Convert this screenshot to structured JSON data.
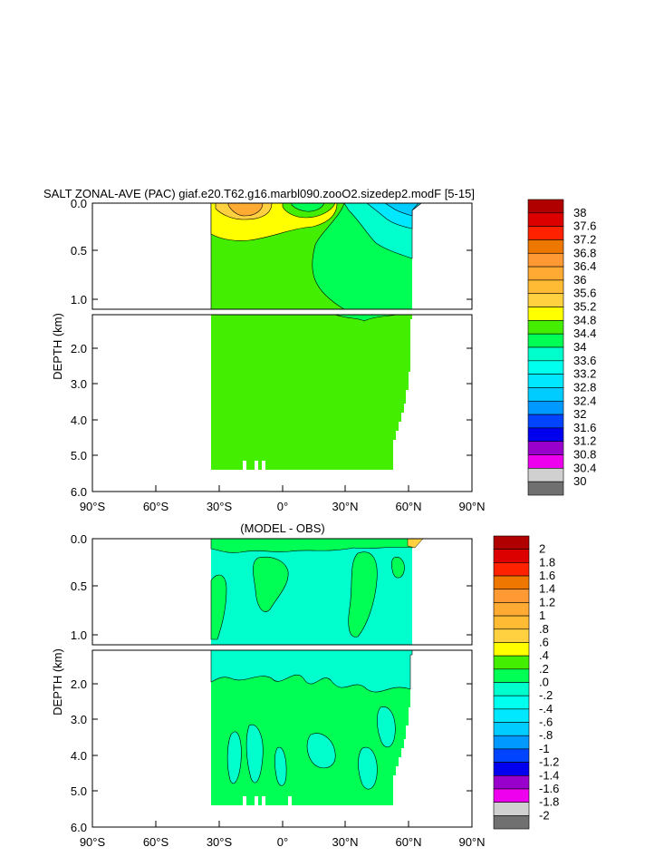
{
  "top": {
    "title": "SALT ZONAL-AVE (PAC) giaf.e20.T62.g16.marbl090.zooO2.sizedep2.modF [5-15]",
    "ylabel": "DEPTH (km)",
    "upper_yticks": [
      "0.0",
      "0.5",
      "1.0"
    ],
    "lower_yticks": [
      "2.0",
      "3.0",
      "4.0",
      "5.0",
      "6.0"
    ],
    "xticks": [
      "90°S",
      "60°S",
      "30°S",
      "0°",
      "30°N",
      "60°N",
      "90°N"
    ]
  },
  "bottom": {
    "title": "(MODEL - OBS)",
    "ylabel": "DEPTH (km)",
    "upper_yticks": [
      "0.0",
      "0.5",
      "1.0"
    ],
    "lower_yticks": [
      "2.0",
      "3.0",
      "4.0",
      "5.0",
      "6.0"
    ],
    "xticks": [
      "90°S",
      "60°S",
      "30°S",
      "0°",
      "30°N",
      "60°N",
      "90°N"
    ]
  },
  "colorbar_top": {
    "labels": [
      "38",
      "37.6",
      "37.2",
      "36.8",
      "36.4",
      "36",
      "35.6",
      "35.2",
      "34.8",
      "34.4",
      "34",
      "33.6",
      "33.2",
      "32.8",
      "32.4",
      "32",
      "31.6",
      "31.2",
      "30.8",
      "30.4",
      "30"
    ],
    "colors": [
      "#b00000",
      "#dd0000",
      "#ff2200",
      "#ee7700",
      "#ff9933",
      "#ffaa33",
      "#ffbb33",
      "#ffd040",
      "#ffff00",
      "#44ee00",
      "#00ff55",
      "#00ffcc",
      "#00ffee",
      "#00e8ff",
      "#00ccff",
      "#0099ff",
      "#0044ff",
      "#0000ee",
      "#9900cc",
      "#ee00ee",
      "#d0d0d0",
      "#707070"
    ]
  },
  "colorbar_bottom": {
    "labels": [
      "2",
      "1.8",
      "1.6",
      "1.4",
      "1.2",
      "1",
      ".8",
      ".6",
      ".4",
      ".2",
      ".0",
      "-.2",
      "-.4",
      "-.6",
      "-.8",
      "-1",
      "-1.2",
      "-1.4",
      "-1.6",
      "-1.8",
      "-2"
    ],
    "colors": [
      "#b00000",
      "#dd0000",
      "#ff2200",
      "#ee7700",
      "#ff9933",
      "#ffaa33",
      "#ffbb33",
      "#ffd040",
      "#ffff00",
      "#44ee00",
      "#00ff55",
      "#00ffcc",
      "#00ffee",
      "#00e8ff",
      "#00ccff",
      "#0099ff",
      "#0044ff",
      "#0000ee",
      "#9900cc",
      "#ee00ee",
      "#d0d0d0",
      "#707070"
    ]
  },
  "chart_data": [
    {
      "type": "heatmap",
      "title": "SALT ZONAL-AVE (PAC) giaf.e20.T62.g16.marbl090.zooO2.sizedep2.modF [5-15]",
      "ylabel": "DEPTH (km)",
      "x_range_deg": [
        -90,
        90
      ],
      "y_range_km": [
        0,
        6
      ],
      "data_extent_lat": [
        -34,
        62
      ],
      "levels": [
        30,
        30.4,
        30.8,
        31.2,
        31.6,
        32,
        32.4,
        32.8,
        33.2,
        33.6,
        34,
        34.4,
        34.8,
        35.2,
        35.6,
        36,
        36.4,
        36.8,
        37.2,
        37.6,
        38
      ],
      "dominant_value_range": [
        34.4,
        34.8
      ]
    },
    {
      "type": "heatmap",
      "title": "(MODEL - OBS)",
      "ylabel": "DEPTH (km)",
      "x_range_deg": [
        -90,
        90
      ],
      "y_range_km": [
        0,
        6
      ],
      "data_extent_lat": [
        -34,
        62
      ],
      "levels": [
        -2,
        -1.8,
        -1.6,
        -1.4,
        -1.2,
        -1,
        -0.8,
        -0.6,
        -0.4,
        -0.2,
        0,
        0.2,
        0.4,
        0.6,
        0.8,
        1,
        1.2,
        1.4,
        1.6,
        1.8,
        2
      ],
      "dominant_value_range": [
        -0.2,
        0.2
      ]
    }
  ]
}
